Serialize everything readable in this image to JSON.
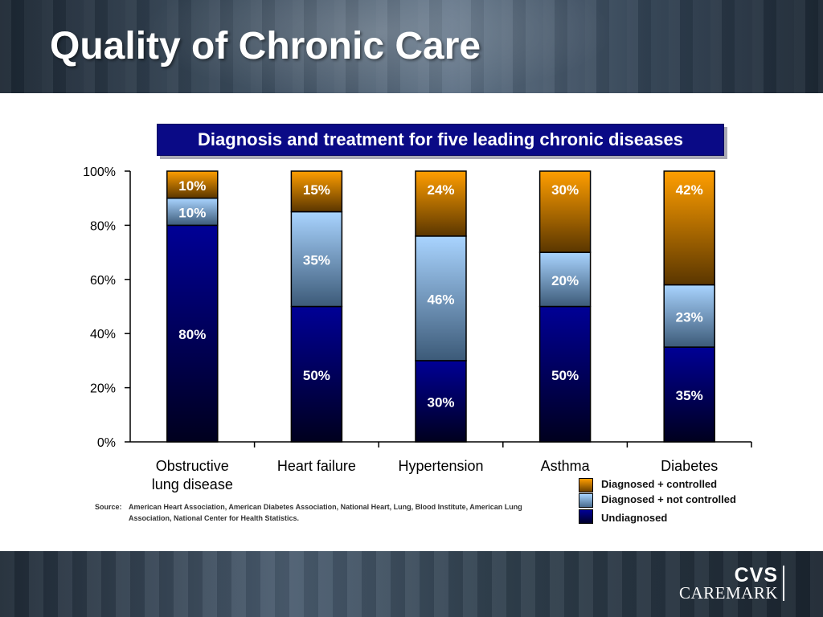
{
  "slide": {
    "title": "Quality of Chronic Care"
  },
  "chart_data": {
    "type": "bar",
    "stacked": true,
    "title": "Diagnosis and treatment for five leading chronic diseases",
    "categories": [
      "Obstructive lung disease",
      "Heart failure",
      "Hypertension",
      "Asthma",
      "Diabetes"
    ],
    "category_label_lines": [
      [
        "Obstructive",
        "lung disease"
      ],
      [
        "Heart failure"
      ],
      [
        "Hypertension"
      ],
      [
        "Asthma"
      ],
      [
        "Diabetes"
      ]
    ],
    "series": [
      {
        "name": "Undiagnosed",
        "values": [
          80,
          50,
          30,
          50,
          35
        ],
        "labels": [
          "80%",
          "50%",
          "30%",
          "50%",
          "35%"
        ],
        "color": "#000066"
      },
      {
        "name": "Diagnosed + not controlled",
        "values": [
          10,
          35,
          46,
          20,
          23
        ],
        "labels": [
          "10%",
          "35%",
          "46%",
          "20%",
          "23%"
        ],
        "color": "#99ccff"
      },
      {
        "name": "Diagnosed + controlled",
        "values": [
          10,
          15,
          24,
          30,
          42
        ],
        "labels": [
          "10%",
          "15%",
          "24%",
          "30%",
          "42%"
        ],
        "color": "#ff9900"
      }
    ],
    "ylim": [
      0,
      100
    ],
    "yticks": [
      0,
      20,
      40,
      60,
      80,
      100
    ],
    "ytick_labels": [
      "0%",
      "20%",
      "40%",
      "60%",
      "80%",
      "100%"
    ],
    "grid": false,
    "legend_position": "bottom-right",
    "legend_order": [
      "Diagnosed + controlled",
      "Diagnosed + not controlled",
      "Undiagnosed"
    ]
  },
  "source": {
    "label": "Source:",
    "text": "American Heart Association, American Diabetes Association, National Heart, Lung, Blood Institute, American Lung Association, National Center for Health Statistics."
  },
  "logo": {
    "line1": "CVS",
    "line2": "CAREMARK"
  }
}
